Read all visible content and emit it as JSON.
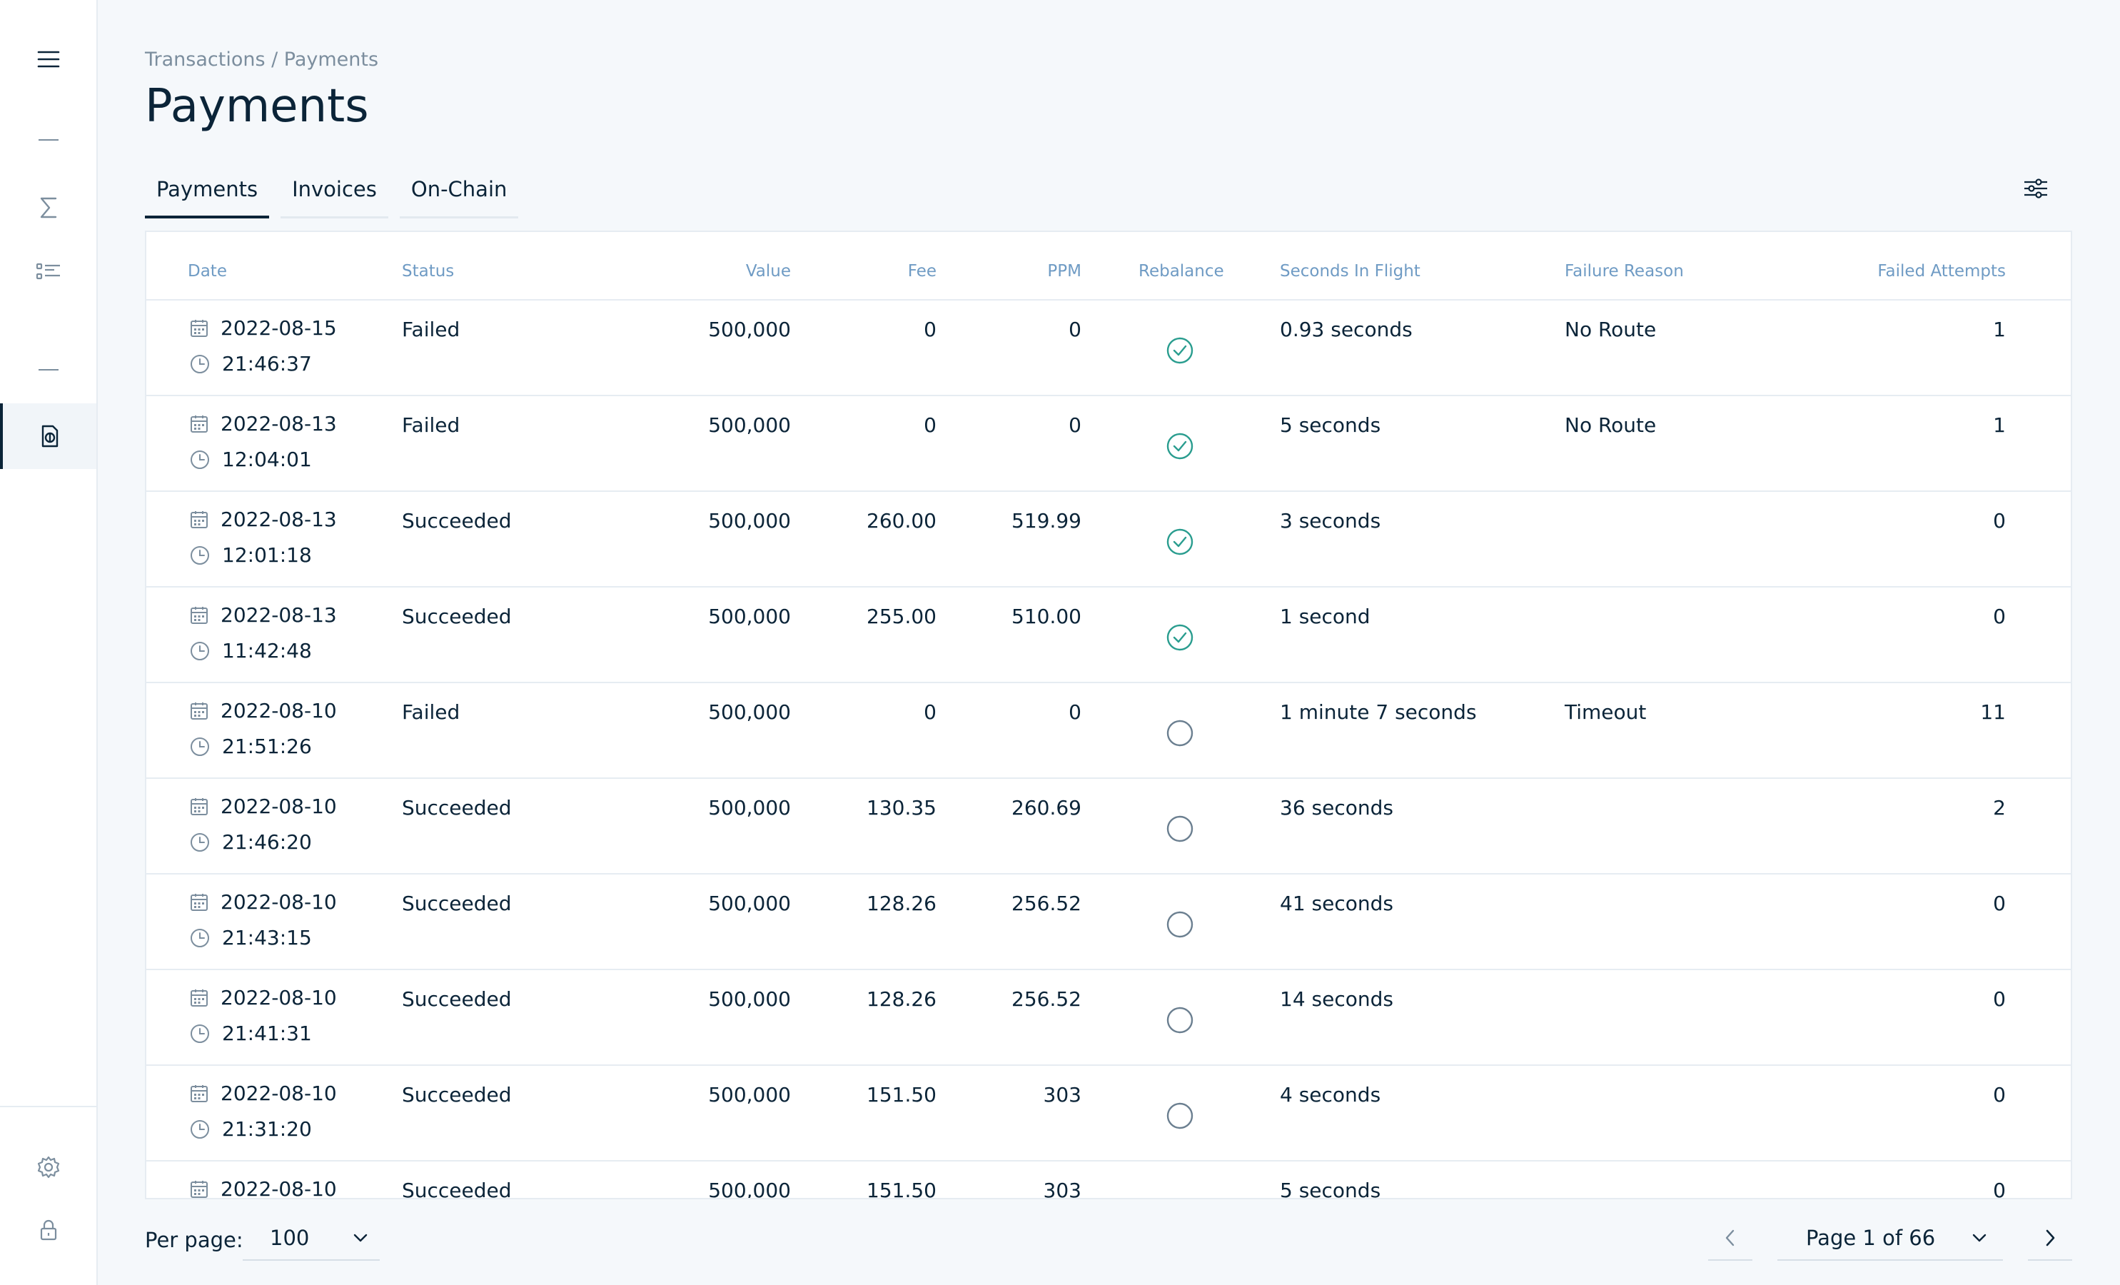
{
  "breadcrumb": "Transactions / Payments",
  "title": "Payments",
  "tabs": [
    {
      "label": "Payments",
      "active": true
    },
    {
      "label": "Invoices",
      "active": false
    },
    {
      "label": "On-Chain",
      "active": false
    }
  ],
  "columns": {
    "date": "Date",
    "status": "Status",
    "value": "Value",
    "fee": "Fee",
    "ppm": "PPM",
    "rebalance": "Rebalance",
    "seconds": "Seconds In Flight",
    "failure": "Failure Reason",
    "attempts": "Failed Attempts"
  },
  "rows": [
    {
      "date": "2022-08-15",
      "time": "21:46:37",
      "status": "Failed",
      "value": "500,000",
      "fee": "0",
      "ppm": "0",
      "rebalance": true,
      "seconds": "0.93 seconds",
      "failure": "No Route",
      "attempts": "1"
    },
    {
      "date": "2022-08-13",
      "time": "12:04:01",
      "status": "Failed",
      "value": "500,000",
      "fee": "0",
      "ppm": "0",
      "rebalance": true,
      "seconds": "5 seconds",
      "failure": "No Route",
      "attempts": "1"
    },
    {
      "date": "2022-08-13",
      "time": "12:01:18",
      "status": "Succeeded",
      "value": "500,000",
      "fee": "260.00",
      "ppm": "519.99",
      "rebalance": true,
      "seconds": "3 seconds",
      "failure": "",
      "attempts": "0"
    },
    {
      "date": "2022-08-13",
      "time": "11:42:48",
      "status": "Succeeded",
      "value": "500,000",
      "fee": "255.00",
      "ppm": "510.00",
      "rebalance": true,
      "seconds": "1 second",
      "failure": "",
      "attempts": "0"
    },
    {
      "date": "2022-08-10",
      "time": "21:51:26",
      "status": "Failed",
      "value": "500,000",
      "fee": "0",
      "ppm": "0",
      "rebalance": false,
      "seconds": "1 minute 7 seconds",
      "failure": "Timeout",
      "attempts": "11"
    },
    {
      "date": "2022-08-10",
      "time": "21:46:20",
      "status": "Succeeded",
      "value": "500,000",
      "fee": "130.35",
      "ppm": "260.69",
      "rebalance": false,
      "seconds": "36 seconds",
      "failure": "",
      "attempts": "2"
    },
    {
      "date": "2022-08-10",
      "time": "21:43:15",
      "status": "Succeeded",
      "value": "500,000",
      "fee": "128.26",
      "ppm": "256.52",
      "rebalance": false,
      "seconds": "41 seconds",
      "failure": "",
      "attempts": "0"
    },
    {
      "date": "2022-08-10",
      "time": "21:41:31",
      "status": "Succeeded",
      "value": "500,000",
      "fee": "128.26",
      "ppm": "256.52",
      "rebalance": false,
      "seconds": "14 seconds",
      "failure": "",
      "attempts": "0"
    },
    {
      "date": "2022-08-10",
      "time": "21:31:20",
      "status": "Succeeded",
      "value": "500,000",
      "fee": "151.50",
      "ppm": "303",
      "rebalance": false,
      "seconds": "4 seconds",
      "failure": "",
      "attempts": "0"
    },
    {
      "date": "2022-08-10",
      "time": "",
      "status": "Succeeded",
      "value": "500,000",
      "fee": "151.50",
      "ppm": "303",
      "rebalance": false,
      "seconds": "5 seconds",
      "failure": "",
      "attempts": "0"
    }
  ],
  "footer": {
    "per_page_label": "Per page:",
    "per_page_value": "100",
    "page_label": "Page 1 of 66"
  },
  "colors": {
    "primary": "#0b2438",
    "header_text": "#6f9bc4",
    "rebalance_check": "#2a9d8f",
    "muted_icon": "#7c8e9e"
  }
}
